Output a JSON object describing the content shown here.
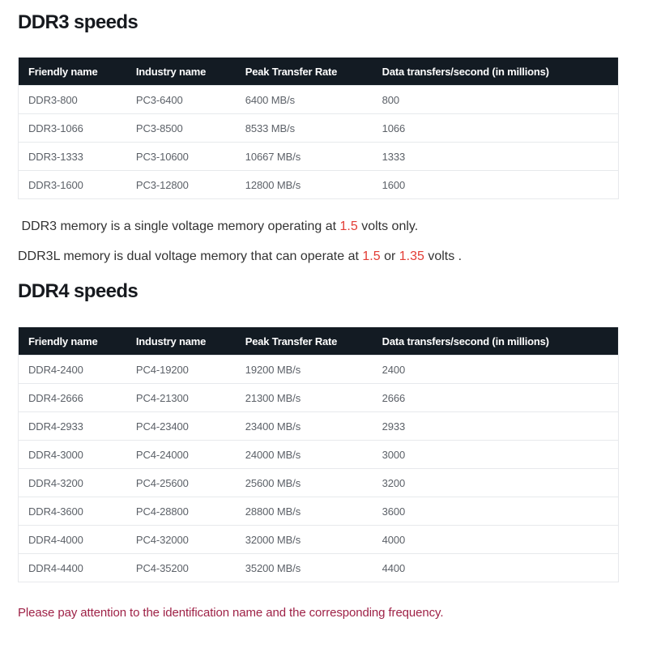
{
  "colors": {
    "heading": "#16191e",
    "header_bg": "#131b23",
    "cell_text": "#5c6168",
    "body_text": "#333333",
    "red": "#e23c35",
    "maroon": "#9e2146"
  },
  "sections": [
    {
      "title": "DDR3 speeds",
      "table": {
        "columns": [
          "Friendly name",
          "Industry name",
          "Peak Transfer Rate",
          "Data transfers/second (in millions)"
        ],
        "rows": [
          [
            "DDR3-800",
            "PC3-6400",
            "6400 MB/s",
            "800"
          ],
          [
            "DDR3-1066",
            "PC3-8500",
            "8533 MB/s",
            "1066"
          ],
          [
            "DDR3-1333",
            "PC3-10600",
            "10667 MB/s",
            "1333"
          ],
          [
            "DDR3-1600",
            "PC3-12800",
            "12800 MB/s",
            "1600"
          ]
        ]
      }
    },
    {
      "title": "DDR4 speeds",
      "table": {
        "columns": [
          "Friendly name",
          "Industry name",
          "Peak Transfer Rate",
          "Data transfers/second (in millions)"
        ],
        "rows": [
          [
            "DDR4-2400",
            "PC4-19200",
            "19200 MB/s",
            "2400"
          ],
          [
            "DDR4-2666",
            "PC4-21300",
            "21300 MB/s",
            "2666"
          ],
          [
            "DDR4-2933",
            "PC4-23400",
            "23400 MB/s",
            "2933"
          ],
          [
            "DDR4-3000",
            "PC4-24000",
            "24000 MB/s",
            "3000"
          ],
          [
            "DDR4-3200",
            "PC4-25600",
            "25600 MB/s",
            "3200"
          ],
          [
            "DDR4-3600",
            "PC4-28800",
            "28800 MB/s",
            "3600"
          ],
          [
            "DDR4-4000",
            "PC4-32000",
            "32000 MB/s",
            "4000"
          ],
          [
            "DDR4-4400",
            "PC4-35200",
            "35200 MB/s",
            "4400"
          ]
        ]
      }
    }
  ],
  "notes": [
    {
      "segments": [
        {
          "text": " DDR3 memory is a single voltage memory operating at ",
          "color": "default"
        },
        {
          "text": "1.5",
          "color": "red"
        },
        {
          "text": " volts only.",
          "color": "default"
        }
      ]
    },
    {
      "segments": [
        {
          "text": "DDR3L memory is dual voltage memory that can operate at ",
          "color": "default"
        },
        {
          "text": "1.5",
          "color": "red"
        },
        {
          "text": " or ",
          "color": "default"
        },
        {
          "text": "1.35",
          "color": "red"
        },
        {
          "text": " volts .",
          "color": "default"
        }
      ]
    }
  ],
  "footer_note": "Please pay attention to the identification name and the corresponding frequency."
}
